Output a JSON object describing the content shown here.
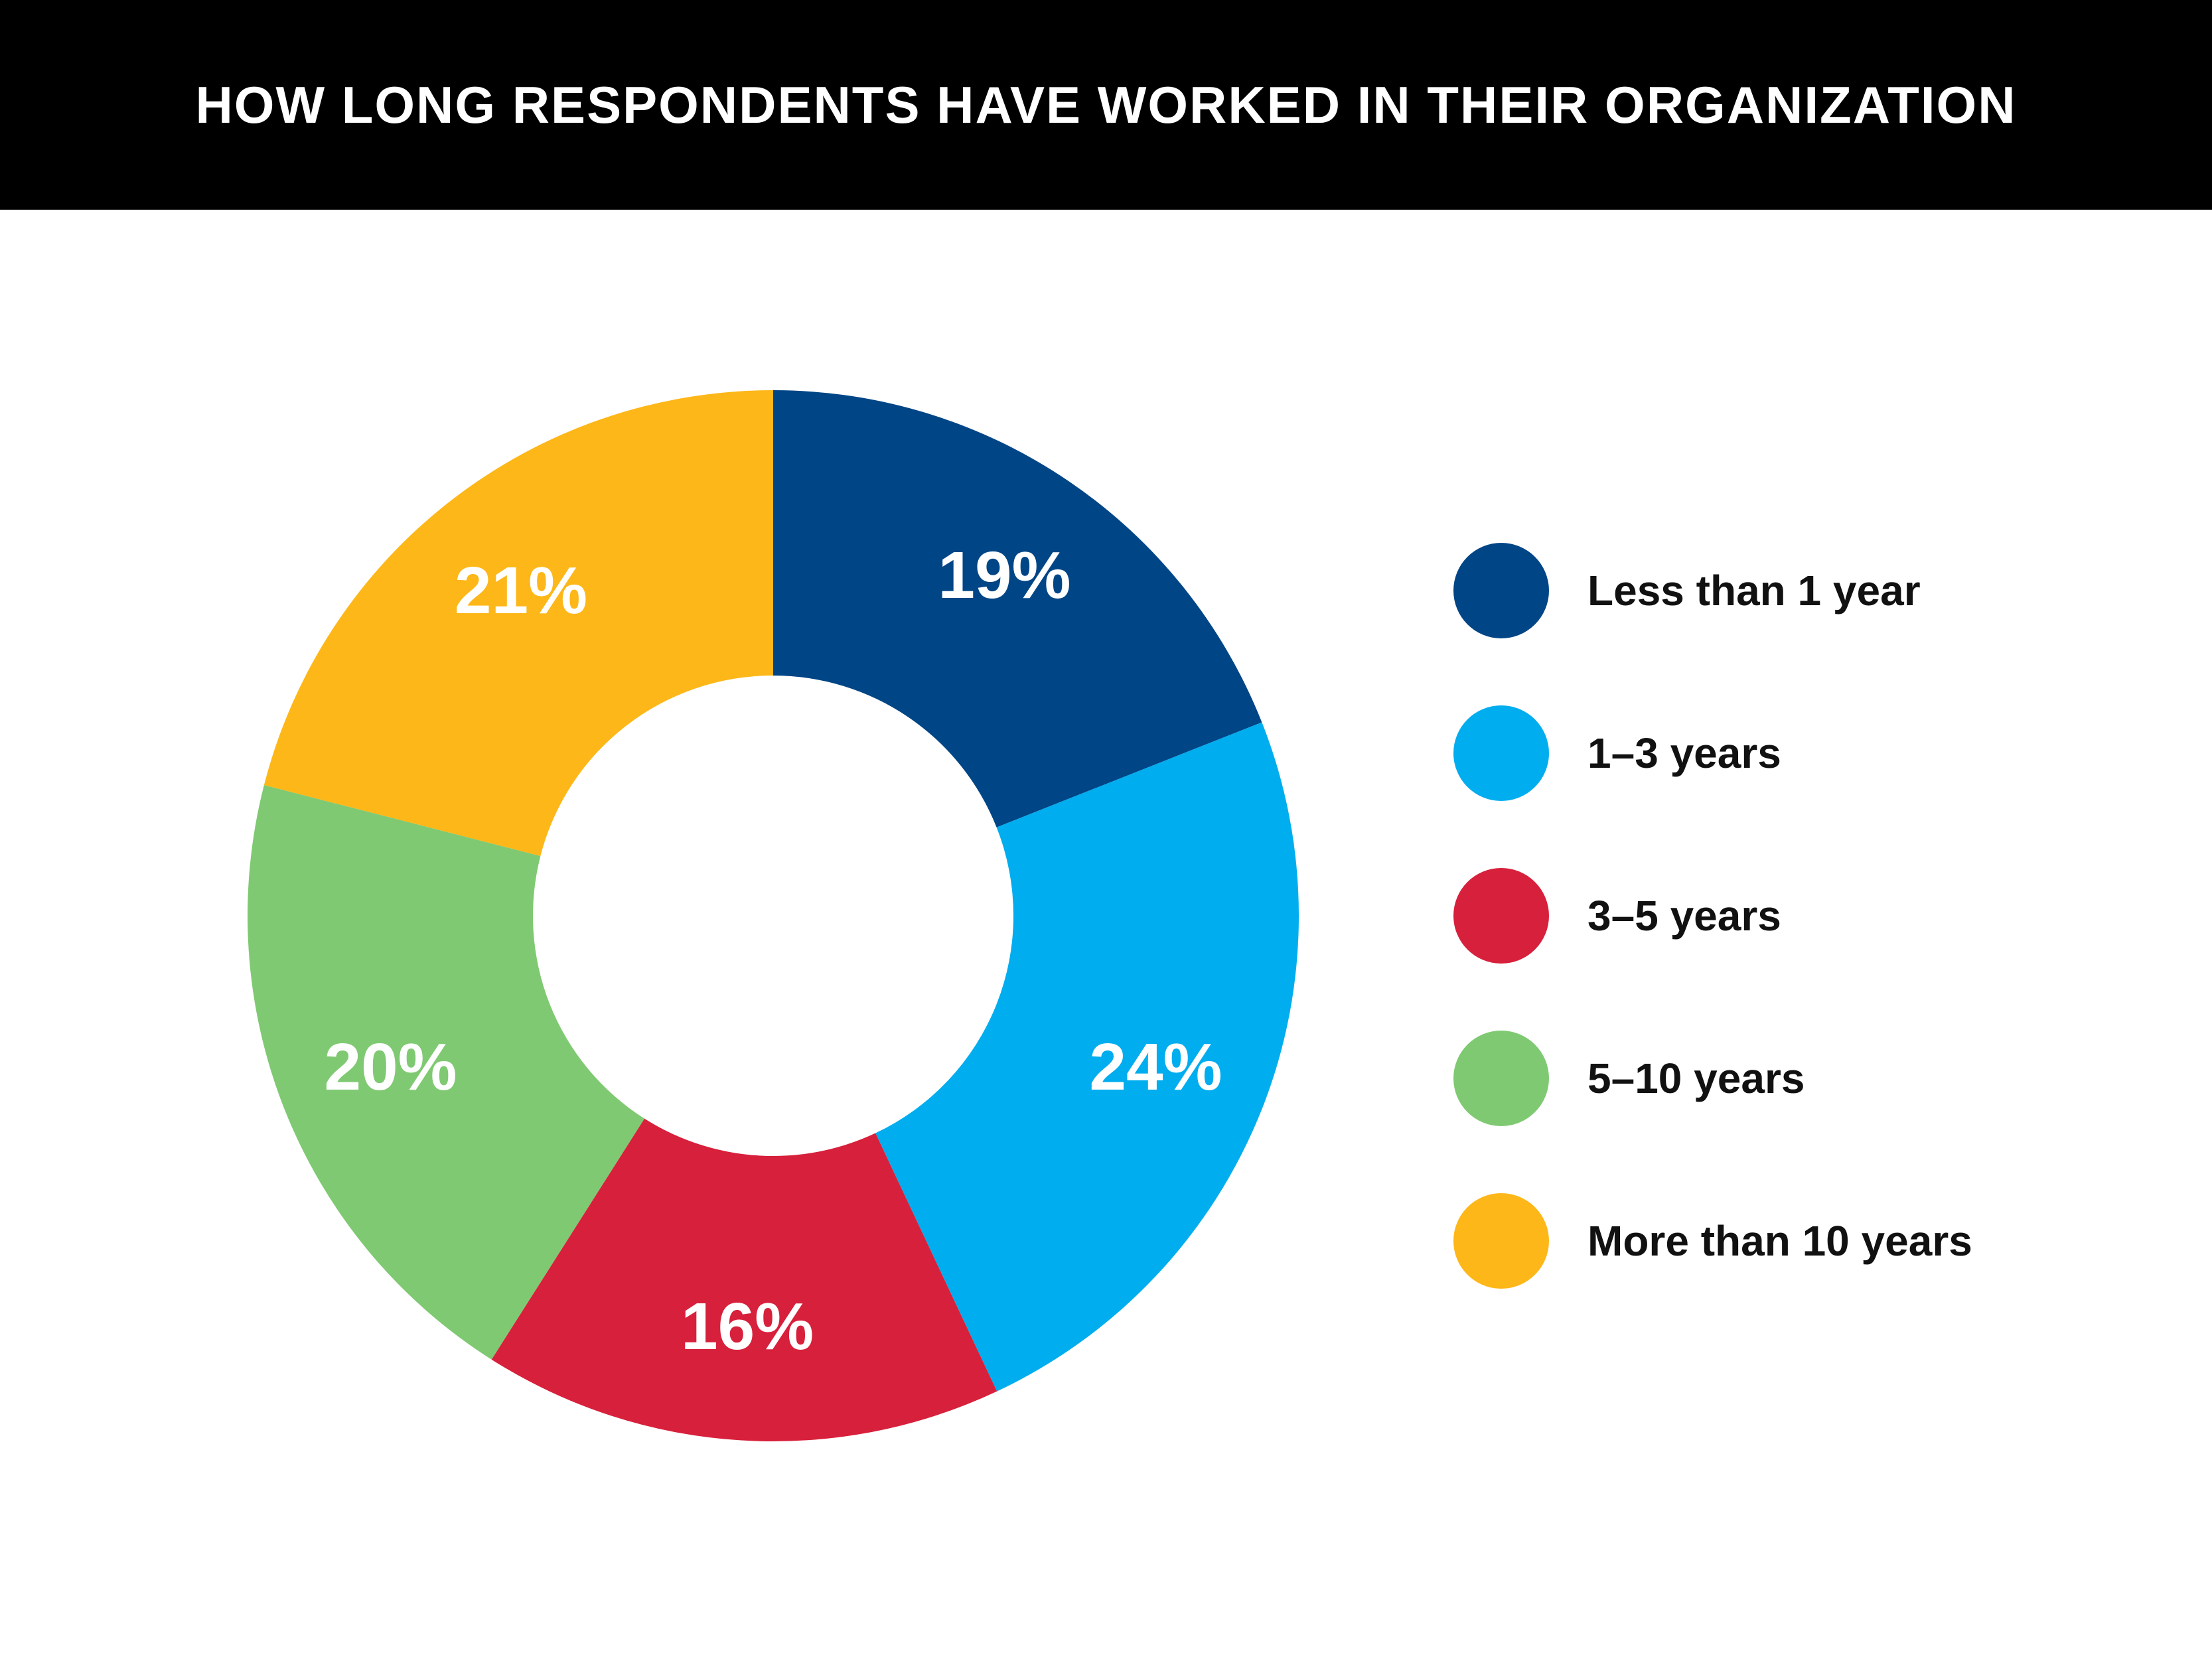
{
  "header": {
    "title": "HOW LONG RESPONDENTS HAVE WORKED IN THEIR ORGANIZATION"
  },
  "chart_data": {
    "type": "pie",
    "variant": "donut",
    "title": "HOW LONG RESPONDENTS HAVE WORKED IN THEIR ORGANIZATION",
    "categories": [
      "Less than 1 year",
      "1–3 years",
      "3–5 years",
      "5–10 years",
      "More than 10 years"
    ],
    "values": [
      19,
      24,
      16,
      20,
      21
    ],
    "labels": [
      "19%",
      "24%",
      "16%",
      "20%",
      "21%"
    ],
    "colors": [
      "#004586",
      "#00adef",
      "#d7203b",
      "#7fc972",
      "#fdb718"
    ],
    "legend_position": "right",
    "start_angle": "top, clockwise"
  }
}
